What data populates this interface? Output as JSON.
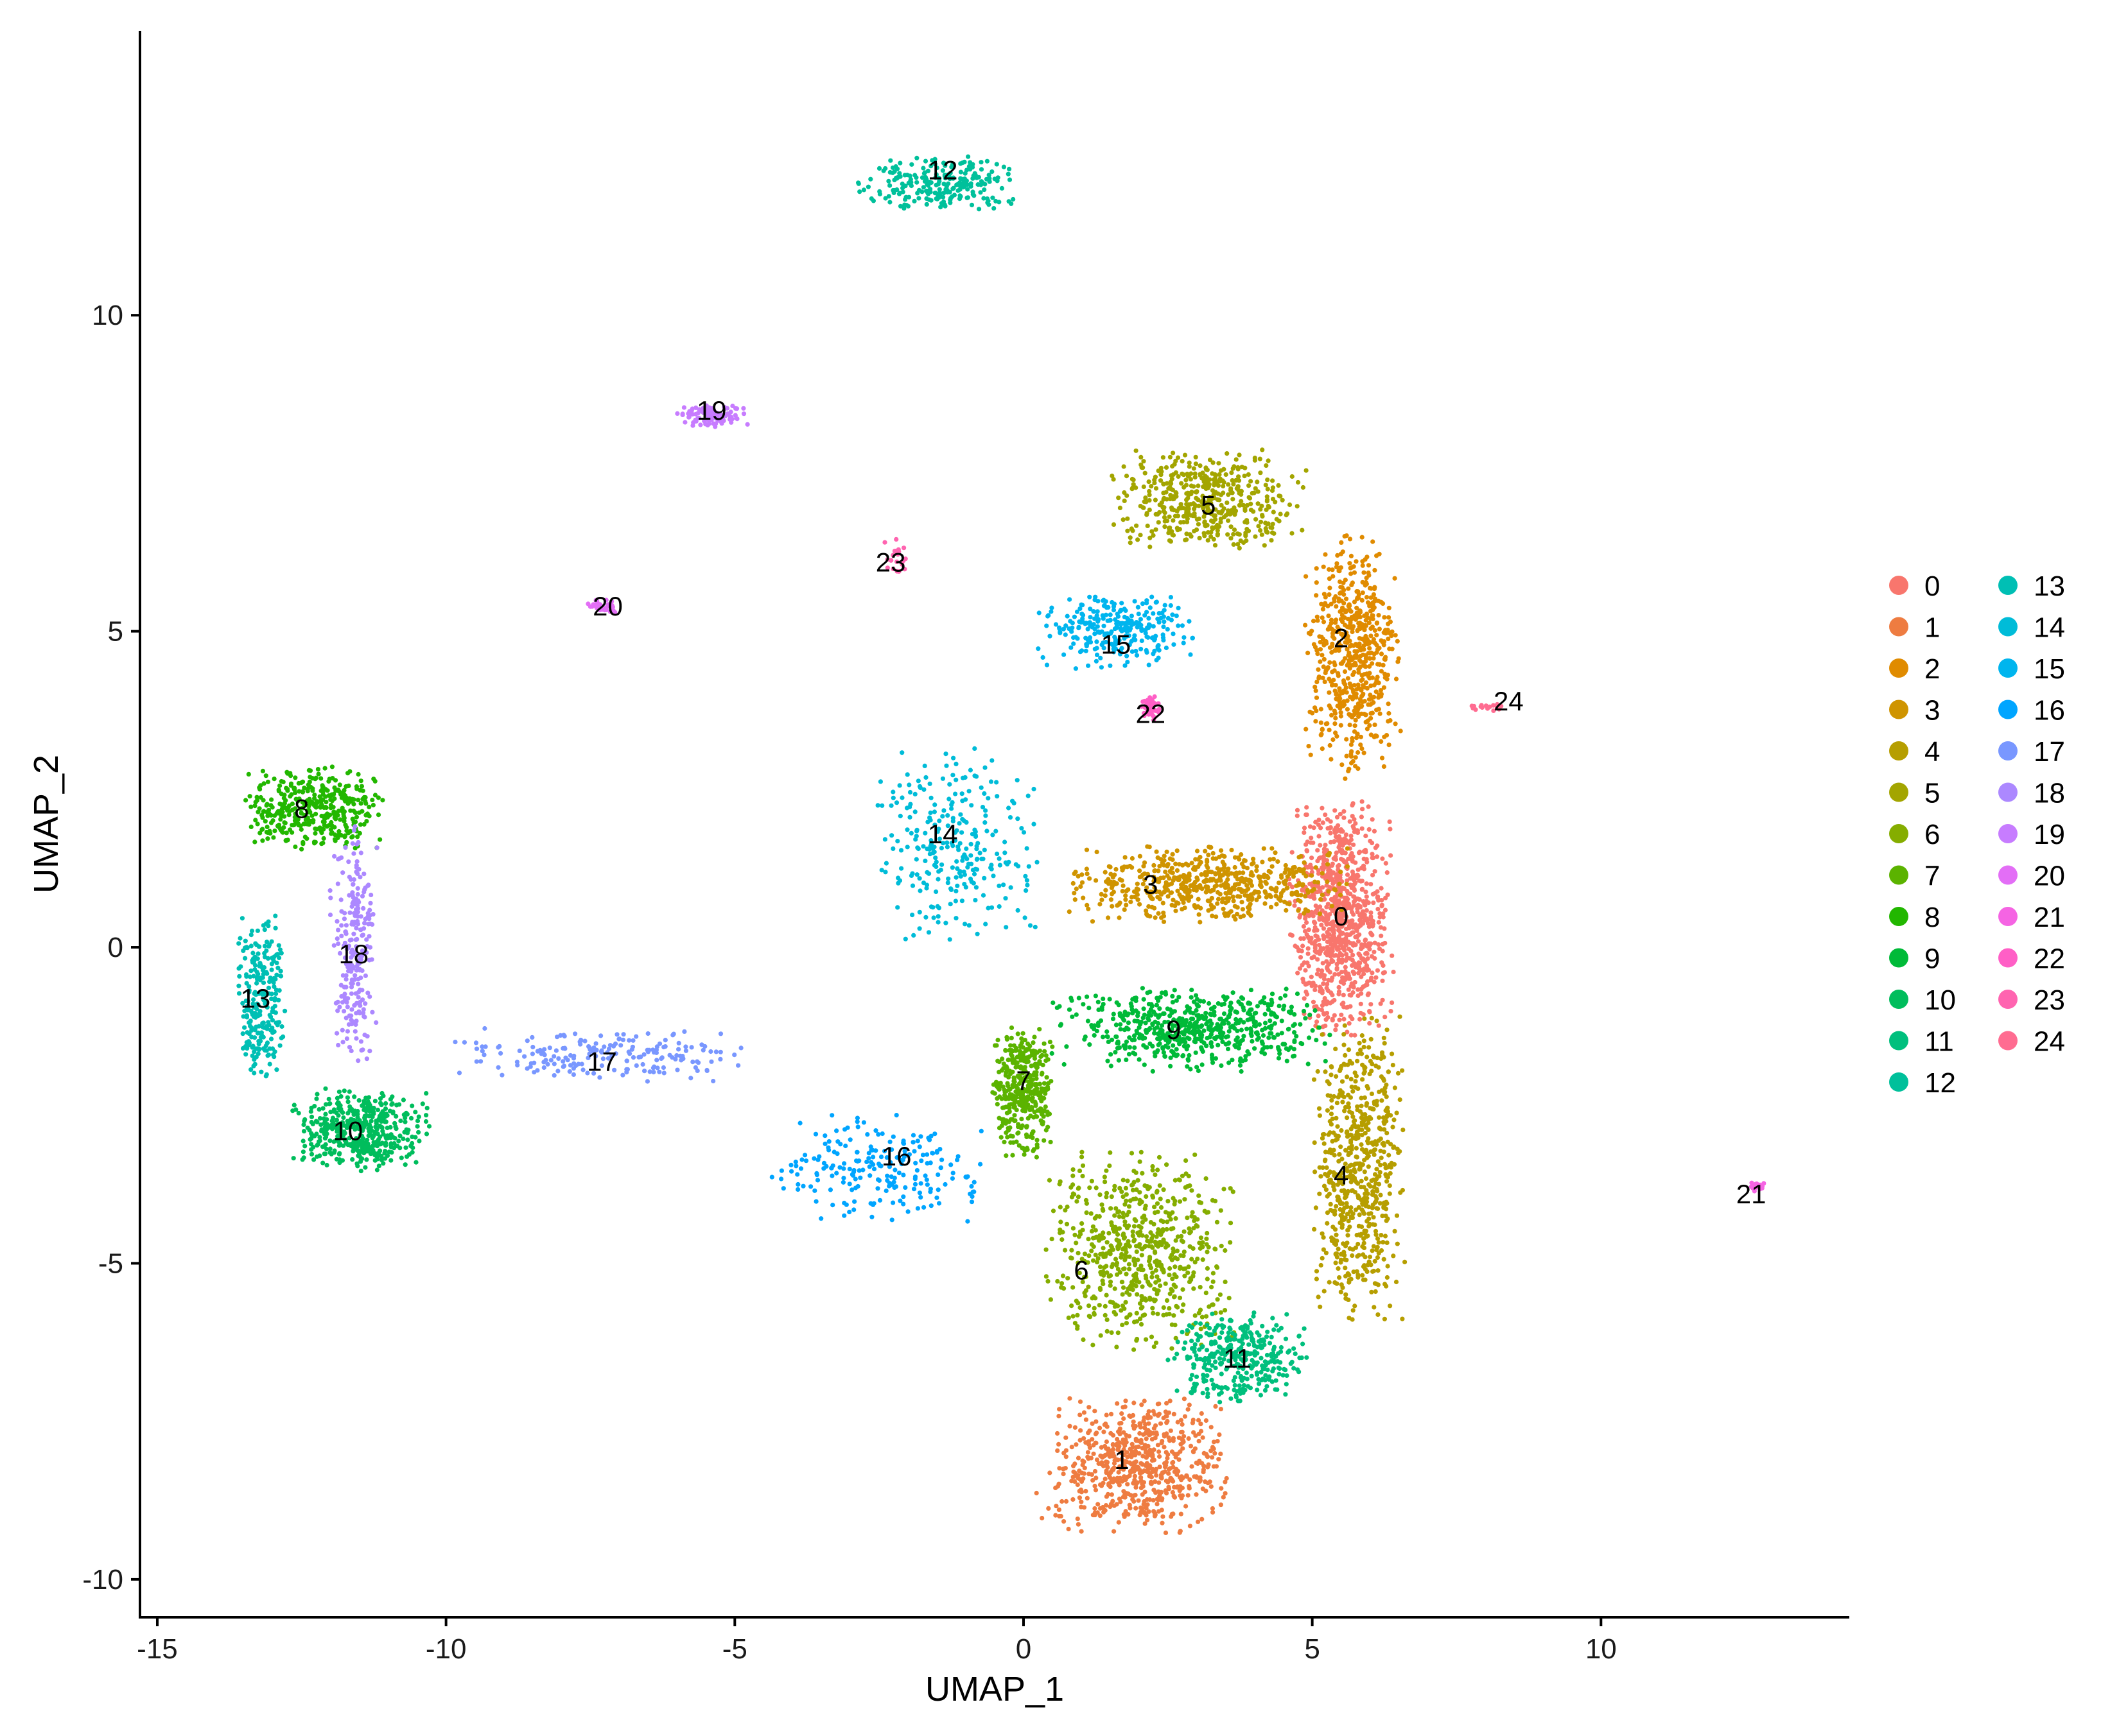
{
  "chart_data": {
    "type": "scatter",
    "title": "",
    "xlabel": "UMAP_1",
    "ylabel": "UMAP_2",
    "xlim": [
      -15.3,
      14.3
    ],
    "ylim": [
      -10.6,
      14.5
    ],
    "x_ticks": [
      -15,
      -10,
      -5,
      0,
      5,
      10
    ],
    "y_ticks": [
      -10,
      -5,
      0,
      5,
      10
    ],
    "x_tick_labels": [
      "-15",
      "-10",
      "-5",
      "0",
      "5",
      "10"
    ],
    "y_tick_labels": [
      "-10",
      "-5",
      "0",
      "5",
      "10"
    ],
    "grid": false,
    "legend_position": "right",
    "legend_columns": 2,
    "series": [
      {
        "name": "0",
        "color": "#F8766D",
        "center": [
          5.5,
          0.5
        ],
        "spread": [
          0.75,
          1.6
        ],
        "n": 900
      },
      {
        "name": "1",
        "color": "#EE7C41",
        "center": [
          2.0,
          -8.2
        ],
        "spread": [
          1.3,
          0.9
        ],
        "n": 650
      },
      {
        "name": "2",
        "color": "#E08B00",
        "center": [
          5.7,
          4.6
        ],
        "spread": [
          0.7,
          1.6
        ],
        "n": 600
      },
      {
        "name": "3",
        "color": "#CF9400",
        "center": [
          3.2,
          1.0
        ],
        "spread": [
          2.0,
          0.5
        ],
        "n": 600
      },
      {
        "name": "4",
        "color": "#B69E00",
        "center": [
          5.8,
          -3.5
        ],
        "spread": [
          0.65,
          2.0
        ],
        "n": 650
      },
      {
        "name": "5",
        "color": "#A3A500",
        "center": [
          3.2,
          7.1
        ],
        "spread": [
          1.4,
          0.65
        ],
        "n": 480
      },
      {
        "name": "6",
        "color": "#85AD00",
        "center": [
          2.0,
          -4.8
        ],
        "spread": [
          1.4,
          1.3
        ],
        "n": 650
      },
      {
        "name": "7",
        "color": "#5BB300",
        "center": [
          0.0,
          -2.3
        ],
        "spread": [
          0.45,
          0.9
        ],
        "n": 380
      },
      {
        "name": "8",
        "color": "#22B700",
        "center": [
          -12.3,
          2.2
        ],
        "spread": [
          1.0,
          0.55
        ],
        "n": 400
      },
      {
        "name": "9",
        "color": "#00BA38",
        "center": [
          2.9,
          -1.3
        ],
        "spread": [
          2.0,
          0.55
        ],
        "n": 600
      },
      {
        "name": "10",
        "color": "#00BD5C",
        "center": [
          -11.5,
          -2.9
        ],
        "spread": [
          1.0,
          0.55
        ],
        "n": 450
      },
      {
        "name": "11",
        "color": "#00BF7D",
        "center": [
          3.7,
          -6.5
        ],
        "spread": [
          1.0,
          0.6
        ],
        "n": 350
      },
      {
        "name": "12",
        "color": "#00C09B",
        "center": [
          -1.5,
          12.1
        ],
        "spread": [
          1.2,
          0.35
        ],
        "n": 240
      },
      {
        "name": "13",
        "color": "#00BFB4",
        "center": [
          -13.2,
          -0.8
        ],
        "spread": [
          0.35,
          1.1
        ],
        "n": 260
      },
      {
        "name": "14",
        "color": "#00BCD8",
        "center": [
          -1.2,
          1.6
        ],
        "spread": [
          1.2,
          1.3
        ],
        "n": 280
      },
      {
        "name": "15",
        "color": "#00B5EE",
        "center": [
          1.6,
          5.0
        ],
        "spread": [
          1.2,
          0.5
        ],
        "n": 280
      },
      {
        "name": "16",
        "color": "#00A5FF",
        "center": [
          -2.5,
          -3.5
        ],
        "spread": [
          1.6,
          0.7
        ],
        "n": 220
      },
      {
        "name": "17",
        "color": "#7997FF",
        "center": [
          -7.5,
          -1.7
        ],
        "spread": [
          2.2,
          0.35
        ],
        "n": 200
      },
      {
        "name": "18",
        "color": "#AC88FF",
        "center": [
          -11.6,
          0.0
        ],
        "spread": [
          0.35,
          1.6
        ],
        "n": 240
      },
      {
        "name": "19",
        "color": "#C77CFF",
        "center": [
          -5.4,
          8.4
        ],
        "spread": [
          0.5,
          0.15
        ],
        "n": 110
      },
      {
        "name": "20",
        "color": "#E36EF6",
        "center": [
          -7.3,
          5.4
        ],
        "spread": [
          0.2,
          0.1
        ],
        "n": 40
      },
      {
        "name": "21",
        "color": "#F564E3",
        "center": [
          12.7,
          -3.8
        ],
        "spread": [
          0.1,
          0.07
        ],
        "n": 30
      },
      {
        "name": "22",
        "color": "#FF5FC6",
        "center": [
          2.2,
          3.8
        ],
        "spread": [
          0.15,
          0.18
        ],
        "n": 50
      },
      {
        "name": "23",
        "color": "#FF64B0",
        "center": [
          -2.2,
          6.2
        ],
        "spread": [
          0.2,
          0.25
        ],
        "n": 25
      },
      {
        "name": "24",
        "color": "#FF6C91",
        "center": [
          8.0,
          3.8
        ],
        "spread": [
          0.25,
          0.05
        ],
        "n": 16
      }
    ],
    "cluster_labels": [
      {
        "text": "0",
        "x": 5.5,
        "y": 0.5
      },
      {
        "text": "1",
        "x": 1.7,
        "y": -8.1
      },
      {
        "text": "2",
        "x": 5.5,
        "y": 4.9
      },
      {
        "text": "3",
        "x": 2.2,
        "y": 1.0
      },
      {
        "text": "4",
        "x": 5.5,
        "y": -3.6
      },
      {
        "text": "5",
        "x": 3.2,
        "y": 7.0
      },
      {
        "text": "6",
        "x": 1.0,
        "y": -5.1
      },
      {
        "text": "7",
        "x": 0.0,
        "y": -2.1
      },
      {
        "text": "8",
        "x": -12.5,
        "y": 2.2
      },
      {
        "text": "9",
        "x": 2.6,
        "y": -1.3
      },
      {
        "text": "10",
        "x": -11.7,
        "y": -2.9
      },
      {
        "text": "11",
        "x": 3.7,
        "y": -6.5
      },
      {
        "text": "12",
        "x": -1.4,
        "y": 12.3
      },
      {
        "text": "13",
        "x": -13.3,
        "y": -0.8
      },
      {
        "text": "14",
        "x": -1.4,
        "y": 1.8
      },
      {
        "text": "15",
        "x": 1.6,
        "y": 4.8
      },
      {
        "text": "16",
        "x": -2.2,
        "y": -3.3
      },
      {
        "text": "17",
        "x": -7.3,
        "y": -1.8
      },
      {
        "text": "18",
        "x": -11.6,
        "y": -0.1
      },
      {
        "text": "19",
        "x": -5.4,
        "y": 8.5
      },
      {
        "text": "20",
        "x": -7.2,
        "y": 5.4
      },
      {
        "text": "21",
        "x": 12.6,
        "y": -3.9
      },
      {
        "text": "22",
        "x": 2.2,
        "y": 3.7
      },
      {
        "text": "23",
        "x": -2.3,
        "y": 6.1
      },
      {
        "text": "24",
        "x": 8.4,
        "y": 3.9
      }
    ]
  }
}
